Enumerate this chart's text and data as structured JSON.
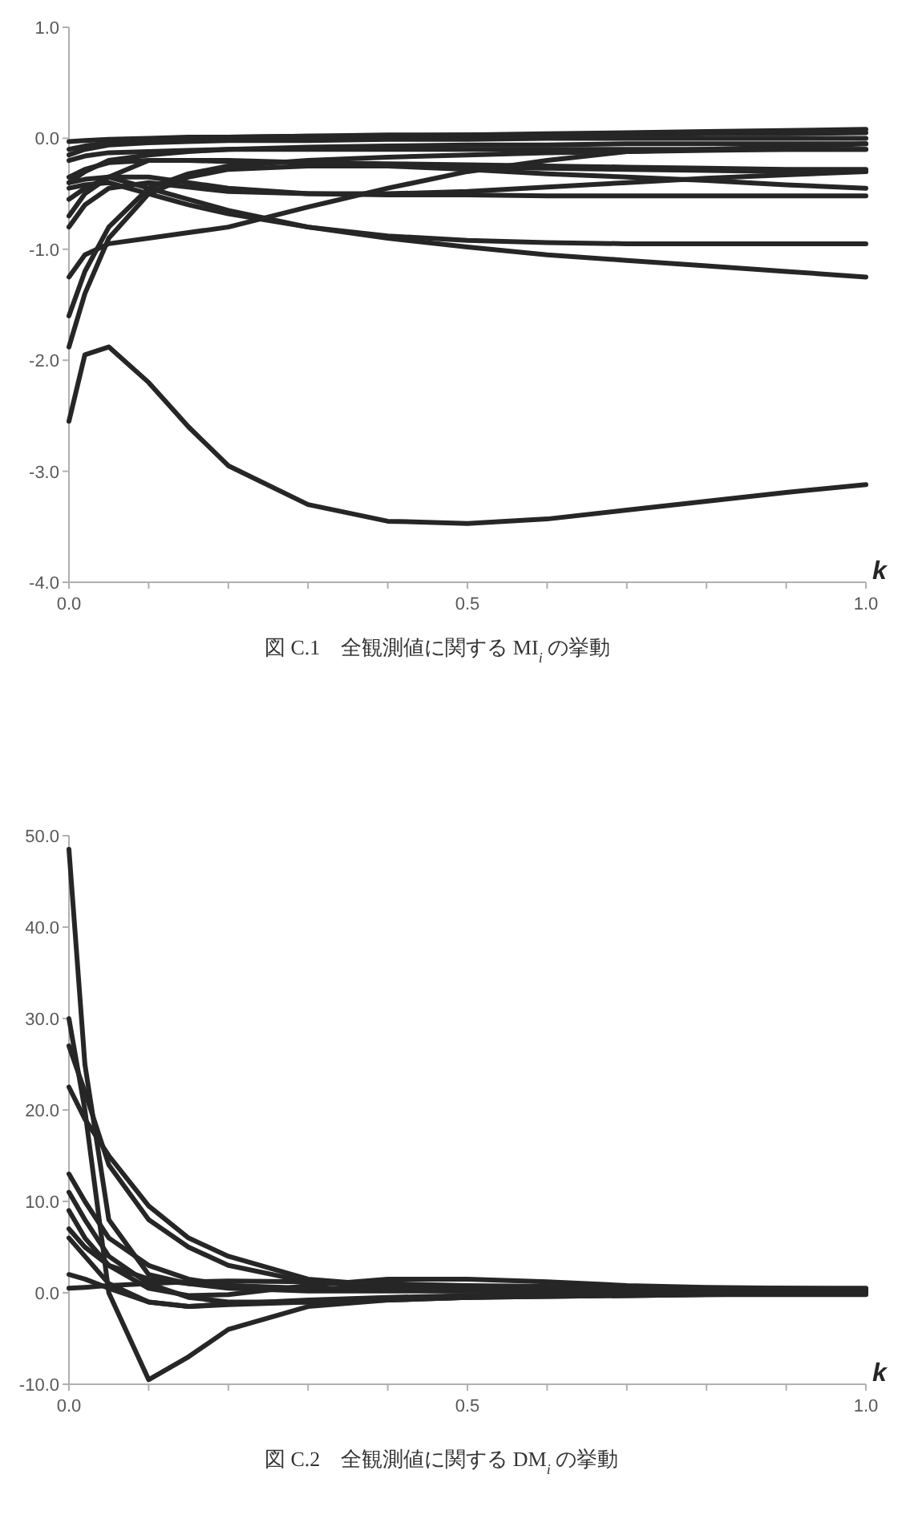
{
  "chart_data": [
    {
      "type": "line",
      "title": "図 C.1　全観測値に関する MI$_{i}$ の挙動",
      "xlabel": "k",
      "xlim": [
        0,
        1
      ],
      "ylim": [
        -4,
        1
      ],
      "xticks": [
        {
          "value": 0,
          "label": "0.0"
        },
        {
          "value": 0.1,
          "label": null
        },
        {
          "value": 0.2,
          "label": null
        },
        {
          "value": 0.3,
          "label": null
        },
        {
          "value": 0.4,
          "label": null
        },
        {
          "value": 0.5,
          "label": "0.5"
        },
        {
          "value": 0.6,
          "label": null
        },
        {
          "value": 0.7,
          "label": null
        },
        {
          "value": 0.8,
          "label": null
        },
        {
          "value": 0.9,
          "label": null
        },
        {
          "value": 1,
          "label": "1.0"
        }
      ],
      "yticks": [
        {
          "value": 1,
          "label": "1.0"
        },
        {
          "value": 0,
          "label": "0.0"
        },
        {
          "value": -1,
          "label": "-1.0"
        },
        {
          "value": -2,
          "label": "-2.0"
        },
        {
          "value": -3,
          "label": "-3.0"
        },
        {
          "value": -4,
          "label": "-4.0"
        }
      ],
      "x": [
        0,
        0.02,
        0.05,
        0.1,
        0.15,
        0.2,
        0.3,
        0.4,
        0.5,
        0.6,
        0.7,
        0.8,
        0.9,
        1.0
      ],
      "series": [
        {
          "color": "#262626",
          "values": [
            -2.55,
            -1.95,
            -1.88,
            -2.2,
            -2.6,
            -2.95,
            -3.3,
            -3.45,
            -3.47,
            -3.43,
            -3.35,
            -3.27,
            -3.19,
            -3.12
          ]
        },
        {
          "color": "#262626",
          "values": [
            -0.4,
            -0.37,
            -0.35,
            -0.45,
            -0.55,
            -0.65,
            -0.8,
            -0.9,
            -0.98,
            -1.05,
            -1.1,
            -1.15,
            -1.2,
            -1.25
          ]
        },
        {
          "color": "#262626",
          "values": [
            -0.45,
            -0.42,
            -0.4,
            -0.5,
            -0.6,
            -0.68,
            -0.8,
            -0.88,
            -0.92,
            -0.94,
            -0.95,
            -0.95,
            -0.95,
            -0.95
          ]
        },
        {
          "color": "#262626",
          "values": [
            -1.25,
            -1.05,
            -0.95,
            -0.9,
            -0.85,
            -0.8,
            -0.62,
            -0.45,
            -0.3,
            -0.2,
            -0.12,
            -0.1,
            -0.08,
            -0.05
          ]
        },
        {
          "color": "#262626",
          "values": [
            -1.6,
            -1.2,
            -0.8,
            -0.45,
            -0.32,
            -0.25,
            -0.2,
            -0.17,
            -0.15,
            -0.13,
            -0.12,
            -0.11,
            -0.1,
            -0.1
          ]
        },
        {
          "color": "#262626",
          "values": [
            -1.88,
            -1.4,
            -0.9,
            -0.5,
            -0.35,
            -0.28,
            -0.25,
            -0.25,
            -0.26,
            -0.27,
            -0.28,
            -0.29,
            -0.3,
            -0.3
          ]
        },
        {
          "color": "#262626",
          "values": [
            -0.8,
            -0.6,
            -0.45,
            -0.4,
            -0.44,
            -0.48,
            -0.5,
            -0.51,
            -0.51,
            -0.52,
            -0.52,
            -0.52,
            -0.52,
            -0.52
          ]
        },
        {
          "color": "#262626",
          "values": [
            -0.55,
            -0.45,
            -0.35,
            -0.2,
            -0.2,
            -0.2,
            -0.22,
            -0.25,
            -0.28,
            -0.32,
            -0.35,
            -0.38,
            -0.42,
            -0.45
          ]
        },
        {
          "color": "#262626",
          "values": [
            -0.7,
            -0.5,
            -0.35,
            -0.35,
            -0.4,
            -0.45,
            -0.5,
            -0.5,
            -0.48,
            -0.44,
            -0.4,
            -0.36,
            -0.33,
            -0.3
          ]
        },
        {
          "color": "#262626",
          "values": [
            -0.03,
            -0.02,
            -0.01,
            0,
            0.01,
            0.01,
            0.02,
            0.02,
            0.03,
            0.03,
            0.03,
            0.04,
            0.04,
            0.05
          ]
        },
        {
          "color": "#262626",
          "values": [
            -0.15,
            -0.1,
            -0.06,
            -0.04,
            -0.03,
            -0.02,
            -0.02,
            -0.01,
            -0.01,
            0,
            0,
            0,
            0,
            0
          ]
        },
        {
          "color": "#262626",
          "values": [
            -0.1,
            -0.07,
            -0.04,
            -0.02,
            0,
            0.01,
            0.02,
            0.03,
            0.03,
            0.04,
            0.05,
            0.06,
            0.07,
            0.08
          ]
        },
        {
          "color": "#262626",
          "values": [
            -0.4,
            -0.3,
            -0.2,
            -0.15,
            -0.12,
            -0.1,
            -0.08,
            -0.07,
            -0.06,
            -0.06,
            -0.05,
            -0.05,
            -0.05,
            -0.05
          ]
        },
        {
          "color": "#262626",
          "values": [
            -0.2,
            -0.16,
            -0.13,
            -0.12,
            -0.11,
            -0.1,
            -0.1,
            -0.1,
            -0.1,
            -0.1,
            -0.1,
            -0.1,
            -0.1,
            -0.1
          ]
        },
        {
          "color": "#262626",
          "values": [
            -0.35,
            -0.28,
            -0.22,
            -0.2,
            -0.2,
            -0.21,
            -0.22,
            -0.23,
            -0.24,
            -0.25,
            -0.26,
            -0.27,
            -0.28,
            -0.28
          ]
        }
      ]
    },
    {
      "type": "line",
      "title": "図 C.2　全観測値に関する DM$_{i}$ の挙動",
      "xlabel": "k",
      "xlim": [
        0,
        1
      ],
      "ylim": [
        -10,
        50
      ],
      "xticks": [
        {
          "value": 0,
          "label": "0.0"
        },
        {
          "value": 0.1,
          "label": null
        },
        {
          "value": 0.2,
          "label": null
        },
        {
          "value": 0.3,
          "label": null
        },
        {
          "value": 0.4,
          "label": null
        },
        {
          "value": 0.5,
          "label": "0.5"
        },
        {
          "value": 0.6,
          "label": null
        },
        {
          "value": 0.7,
          "label": null
        },
        {
          "value": 0.8,
          "label": null
        },
        {
          "value": 0.9,
          "label": null
        },
        {
          "value": 1,
          "label": "1.0"
        }
      ],
      "yticks": [
        {
          "value": 50,
          "label": "50.0"
        },
        {
          "value": 40,
          "label": "40.0"
        },
        {
          "value": 30,
          "label": "30.0"
        },
        {
          "value": 20,
          "label": "20.0"
        },
        {
          "value": 10,
          "label": "10.0"
        },
        {
          "value": 0,
          "label": "0.0"
        },
        {
          "value": -10,
          "label": "-10.0"
        }
      ],
      "x": [
        0,
        0.02,
        0.05,
        0.1,
        0.15,
        0.2,
        0.3,
        0.4,
        0.5,
        0.6,
        0.7,
        0.8,
        0.9,
        1.0
      ],
      "series": [
        {
          "color": "#262626",
          "values": [
            48.5,
            25,
            8,
            2,
            1,
            0.5,
            0.2,
            0.2,
            0.2,
            0.2,
            0.2,
            0.2,
            0.2,
            0.2
          ]
        },
        {
          "color": "#262626",
          "values": [
            30,
            20,
            0,
            -9.5,
            -7,
            -4,
            -1.5,
            -0.8,
            -0.5,
            -0.3,
            -0.2,
            0,
            0.1,
            0.2
          ]
        },
        {
          "color": "#262626",
          "values": [
            27,
            22,
            14,
            8,
            5,
            3,
            1.2,
            0.6,
            0.3,
            0.2,
            0.2,
            0.2,
            0.2,
            0.2
          ]
        },
        {
          "color": "#262626",
          "values": [
            22.5,
            19,
            15,
            9.5,
            6,
            4,
            1.5,
            0.8,
            0.5,
            0.4,
            0.3,
            0.3,
            0.3,
            0.3
          ]
        },
        {
          "color": "#262626",
          "values": [
            13,
            10,
            6,
            3,
            1.5,
            0.8,
            0.4,
            0.3,
            0.2,
            0.2,
            0.2,
            0.2,
            0.2,
            0.2
          ]
        },
        {
          "color": "#262626",
          "values": [
            11,
            8,
            4,
            1,
            -0.5,
            -1,
            -1,
            -0.7,
            -0.5,
            -0.4,
            -0.3,
            -0.2,
            -0.2,
            -0.2
          ]
        },
        {
          "color": "#262626",
          "values": [
            9,
            6,
            3,
            0.5,
            -0.3,
            -0.2,
            0.8,
            1.5,
            1.5,
            1.2,
            0.8,
            0.6,
            0.5,
            0.4
          ]
        },
        {
          "color": "#262626",
          "values": [
            7,
            5,
            3,
            1.5,
            1,
            0.8,
            0.5,
            0.4,
            0.3,
            0.3,
            0.3,
            0.3,
            0.3,
            0.3
          ]
        },
        {
          "color": "#262626",
          "values": [
            6,
            4,
            1,
            -1,
            -1.5,
            -1.3,
            -1,
            -0.8,
            -0.5,
            -0.4,
            -0.3,
            -0.2,
            -0.1,
            0
          ]
        },
        {
          "color": "#262626",
          "values": [
            2,
            1.5,
            0.5,
            -1,
            -1.5,
            -1.2,
            -0.8,
            -0.5,
            -0.3,
            -0.2,
            -0.1,
            0,
            0,
            0
          ]
        },
        {
          "color": "#262626",
          "values": [
            0.5,
            0.6,
            0.8,
            1,
            1.2,
            1.3,
            1.2,
            1,
            0.8,
            0.7,
            0.6,
            0.5,
            0.5,
            0.5
          ]
        }
      ]
    }
  ]
}
